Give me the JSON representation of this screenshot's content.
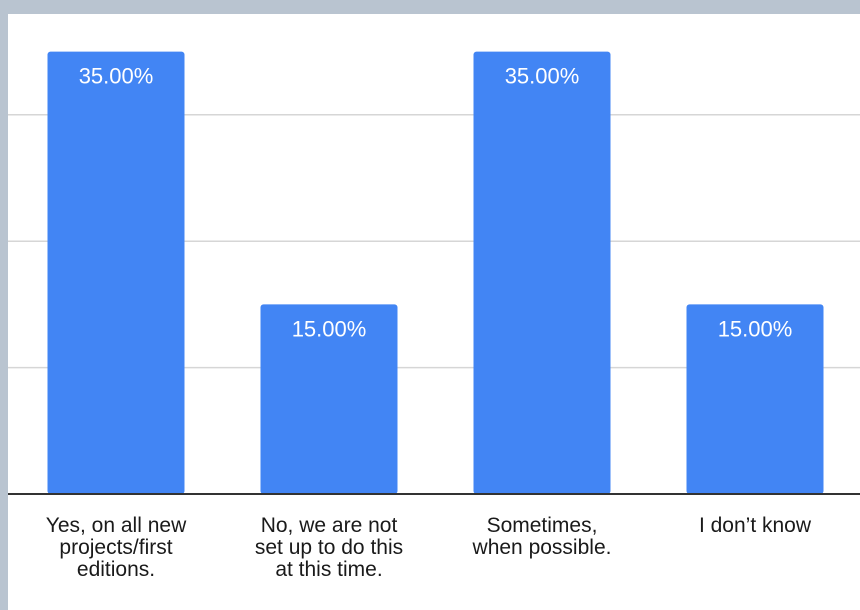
{
  "chart_data": {
    "type": "bar",
    "categories": [
      [
        "Yes, on all new",
        "projects/first",
        "editions."
      ],
      [
        "No, we are not",
        "set up to do this",
        "at this time."
      ],
      [
        "Sometimes,",
        "when possible."
      ],
      [
        "I don’t know"
      ]
    ],
    "values": [
      35.0,
      15.0,
      35.0,
      15.0
    ],
    "value_labels": [
      "35.00%",
      "15.00%",
      "35.00%",
      "15.00%"
    ],
    "ylim": [
      0,
      40
    ],
    "gridlines": [
      10,
      20,
      30
    ],
    "grid": true,
    "legend": "none",
    "bar_color": "#4285f4",
    "gridline_color": "#d6d6d6",
    "axis_color": "#333333"
  }
}
